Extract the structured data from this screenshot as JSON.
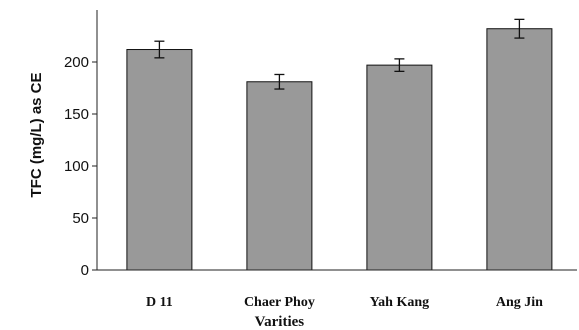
{
  "chart_data": {
    "type": "bar",
    "categories": [
      "D 11",
      "Chaer Phoy",
      "Yah Kang",
      "Ang Jin"
    ],
    "values": [
      212,
      181,
      197,
      232
    ],
    "error": [
      8,
      7,
      6,
      9
    ],
    "xlabel": "Varities",
    "ylabel": "TFC (mg/L) as CE",
    "ylim": [
      0,
      250
    ],
    "yticks": [
      0,
      50,
      100,
      150,
      200
    ],
    "grid": false,
    "legend": "none",
    "bar_color": "#999999",
    "bar_edge_color": "#111111"
  }
}
